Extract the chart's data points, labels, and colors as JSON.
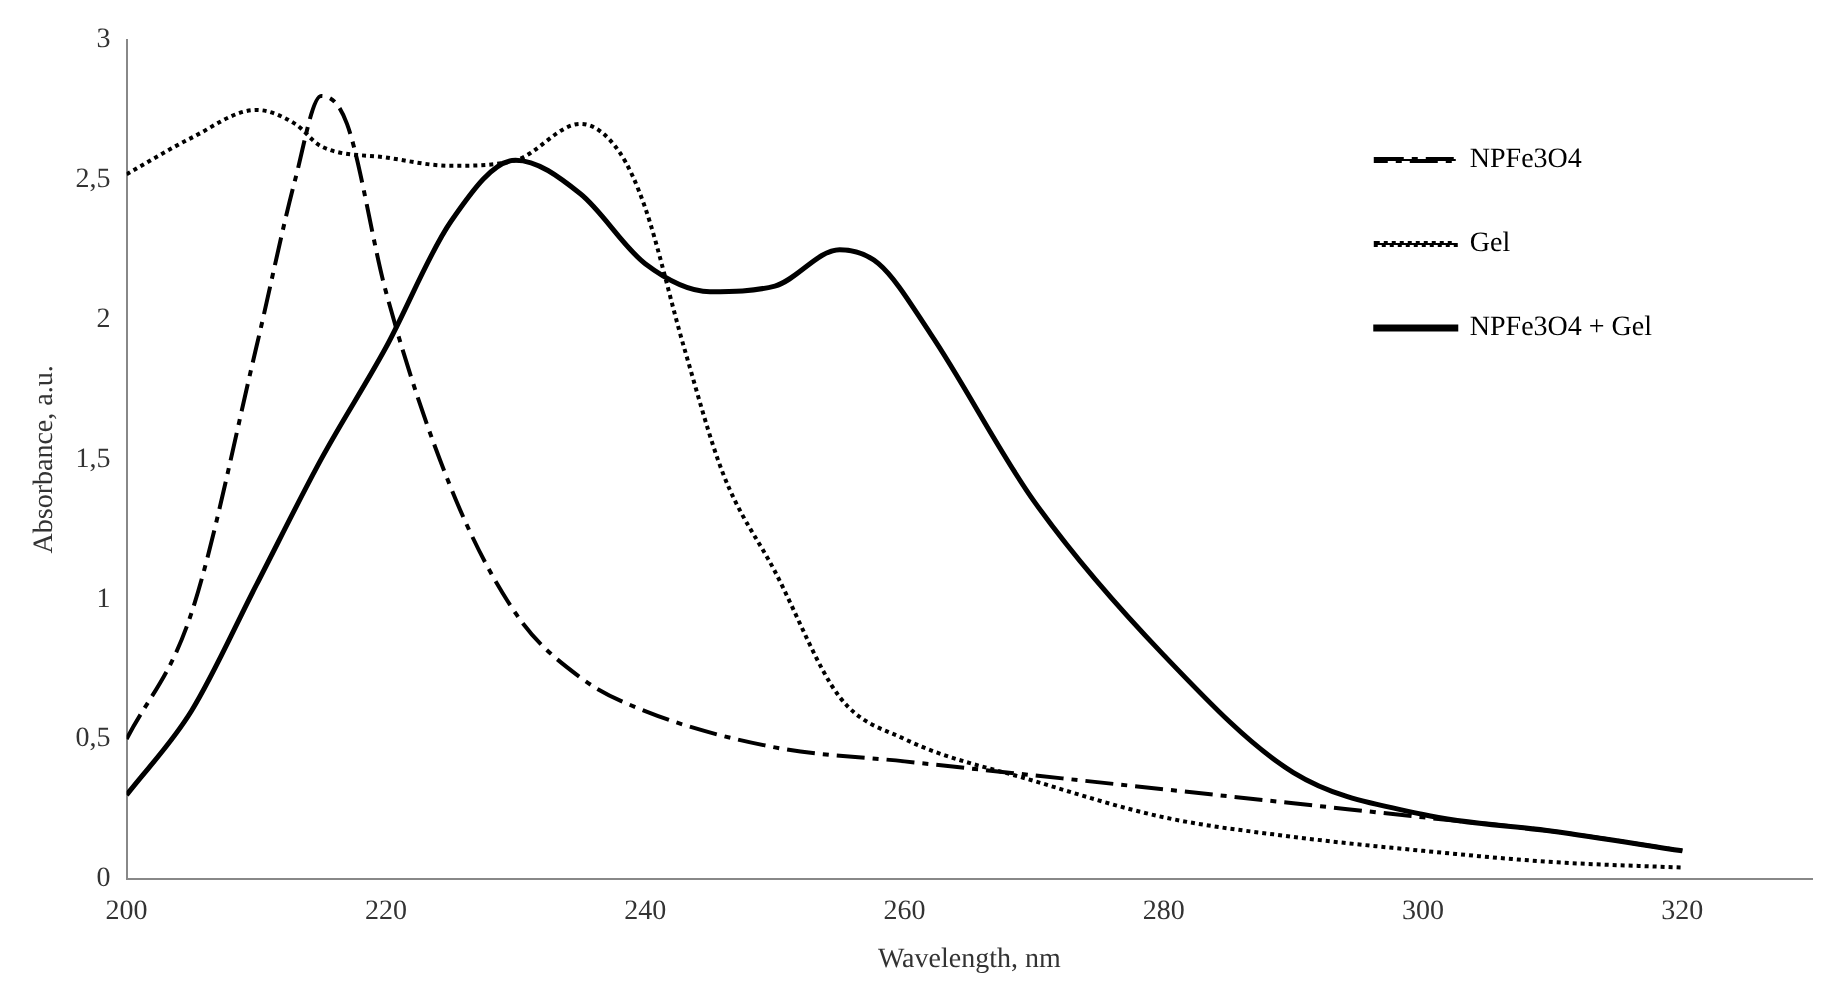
{
  "chart_data": {
    "type": "line",
    "xlabel": "Wavelength, nm",
    "ylabel": "Absorbance, a.u.",
    "xlim": [
      200,
      330
    ],
    "xticks": [
      200,
      220,
      240,
      260,
      280,
      300,
      320
    ],
    "ylim": [
      0,
      3
    ],
    "yticks": [
      0,
      {
        "value": 0.5,
        "label": "0,5"
      },
      1,
      {
        "value": 1.5,
        "label": "1,5"
      },
      2,
      {
        "value": 2.5,
        "label": "2,5"
      },
      3
    ],
    "grid": false,
    "legend": "top right",
    "marker": "none",
    "series": [
      {
        "name": "NPFe3O4",
        "color": "#000000",
        "line_style": "dashed",
        "x": [
          200,
          205,
          210,
          213,
          215,
          217,
          220,
          225,
          230,
          235,
          240,
          250,
          260,
          270,
          280,
          290,
          300,
          310,
          320
        ],
        "values": [
          0.5,
          0.95,
          1.9,
          2.5,
          2.8,
          2.7,
          2.1,
          1.4,
          0.95,
          0.72,
          0.6,
          0.47,
          0.42,
          0.37,
          0.32,
          0.27,
          0.22,
          0.17,
          0.1
        ]
      },
      {
        "name": "Gel",
        "color": "#000000",
        "line_style": "dotted",
        "x": [
          200,
          205,
          210,
          213,
          215,
          220,
          225,
          230,
          235,
          238,
          240,
          243,
          246,
          250,
          255,
          260,
          270,
          280,
          290,
          300,
          310,
          320
        ],
        "values": [
          2.52,
          2.65,
          2.75,
          2.7,
          2.62,
          2.58,
          2.55,
          2.57,
          2.7,
          2.6,
          2.4,
          1.9,
          1.45,
          1.1,
          0.65,
          0.5,
          0.35,
          0.22,
          0.15,
          0.1,
          0.06,
          0.04
        ]
      },
      {
        "name": "NPFe3O4 + Gel",
        "color": "#000000",
        "line_style": "solid",
        "x": [
          200,
          205,
          210,
          215,
          220,
          225,
          230,
          235,
          240,
          245,
          250,
          255,
          258,
          262,
          270,
          280,
          290,
          300,
          310,
          320
        ],
        "values": [
          0.3,
          0.6,
          1.05,
          1.5,
          1.9,
          2.35,
          2.57,
          2.45,
          2.2,
          2.1,
          2.12,
          2.25,
          2.2,
          1.95,
          1.35,
          0.8,
          0.38,
          0.23,
          0.17,
          0.1
        ]
      }
    ]
  }
}
